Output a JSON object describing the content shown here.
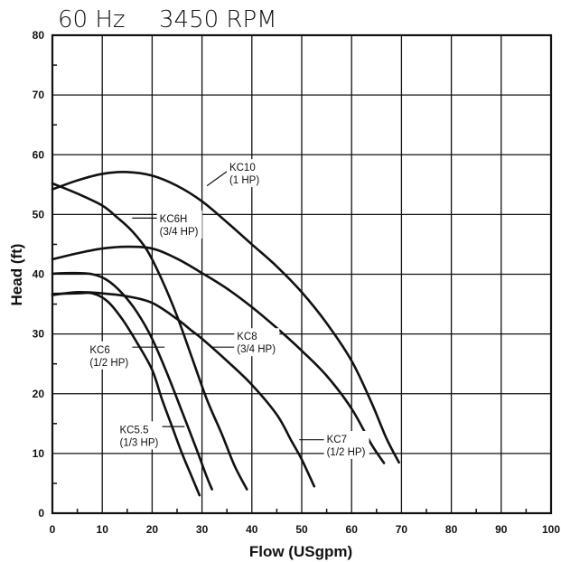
{
  "chart_data": {
    "type": "line",
    "title_frequency": "60 Hz",
    "title_speed": "3450 RPM",
    "xlabel": "Flow (USgpm)",
    "ylabel": "Head (ft)",
    "xlim": [
      0,
      100
    ],
    "ylim": [
      0,
      80
    ],
    "x_ticks": [
      0,
      10,
      20,
      30,
      40,
      50,
      60,
      70,
      80,
      90,
      100
    ],
    "y_ticks": [
      0,
      10,
      20,
      30,
      40,
      50,
      60,
      70,
      80
    ],
    "grid": true,
    "series": [
      {
        "name_line1": "KC10",
        "name_line2": "(1 HP)",
        "points": [
          [
            0,
            54.2
          ],
          [
            5,
            55.7
          ],
          [
            10,
            56.8
          ],
          [
            15,
            57.1
          ],
          [
            20,
            56.5
          ],
          [
            25,
            54.8
          ],
          [
            30,
            52.2
          ],
          [
            35,
            48.7
          ],
          [
            40,
            45
          ],
          [
            45,
            41.3
          ],
          [
            50,
            37
          ],
          [
            55,
            31.8
          ],
          [
            60,
            25.5
          ],
          [
            64,
            18.5
          ],
          [
            67,
            12.5
          ],
          [
            69.5,
            8.5
          ]
        ]
      },
      {
        "name_line1": "KC6H",
        "name_line2": "(3/4 HP)",
        "points": [
          [
            0,
            55.2
          ],
          [
            5,
            53.5
          ],
          [
            10,
            51.5
          ],
          [
            13,
            49.5
          ],
          [
            16,
            47.2
          ],
          [
            19,
            44
          ],
          [
            22,
            39
          ],
          [
            25,
            33
          ],
          [
            28,
            26
          ],
          [
            31,
            19
          ],
          [
            34,
            13.2
          ],
          [
            36.5,
            8
          ],
          [
            39,
            4
          ]
        ]
      },
      {
        "name_line1": "KC8",
        "name_line2": "(3/4 HP)",
        "points": [
          [
            0,
            42.5
          ],
          [
            5,
            43.5
          ],
          [
            10,
            44.3
          ],
          [
            15,
            44.6
          ],
          [
            20,
            44.3
          ],
          [
            25,
            42.6
          ],
          [
            30,
            40.2
          ],
          [
            35,
            37.6
          ],
          [
            40,
            34.5
          ],
          [
            45,
            31
          ],
          [
            50,
            27.2
          ],
          [
            55,
            23
          ],
          [
            60,
            17.5
          ],
          [
            64,
            11.5
          ],
          [
            66.5,
            8.4
          ]
        ]
      },
      {
        "name_line1": "KC7",
        "name_line2": "(1/2 HP)",
        "points": [
          [
            0,
            36.5
          ],
          [
            5,
            37
          ],
          [
            10,
            36.8
          ],
          [
            15,
            36.3
          ],
          [
            20,
            35.2
          ],
          [
            25,
            32.5
          ],
          [
            28,
            30.5
          ],
          [
            30,
            29.2
          ],
          [
            35,
            25.5
          ],
          [
            40,
            21.5
          ],
          [
            45,
            16.5
          ],
          [
            48,
            12
          ],
          [
            50,
            9
          ],
          [
            52.5,
            4.5
          ]
        ]
      },
      {
        "name_line1": "KC6",
        "name_line2": "(1/2 HP)",
        "points": [
          [
            0,
            40.1
          ],
          [
            4,
            40.2
          ],
          [
            8,
            40
          ],
          [
            11,
            39
          ],
          [
            14,
            36.8
          ],
          [
            17,
            33.6
          ],
          [
            20,
            29.2
          ],
          [
            23,
            23.4
          ],
          [
            26,
            17
          ],
          [
            29,
            10.5
          ],
          [
            31,
            6
          ],
          [
            32,
            4
          ]
        ]
      },
      {
        "name_line1": "KC5.5",
        "name_line2": "(1/3 HP)",
        "points": [
          [
            0,
            36.7
          ],
          [
            5,
            36.8
          ],
          [
            8,
            36.8
          ],
          [
            11,
            35.5
          ],
          [
            14,
            32.5
          ],
          [
            17,
            28.5
          ],
          [
            20,
            24
          ],
          [
            22,
            19
          ],
          [
            24,
            14.5
          ],
          [
            26,
            10
          ],
          [
            28,
            6
          ],
          [
            29.5,
            3
          ]
        ]
      }
    ]
  }
}
